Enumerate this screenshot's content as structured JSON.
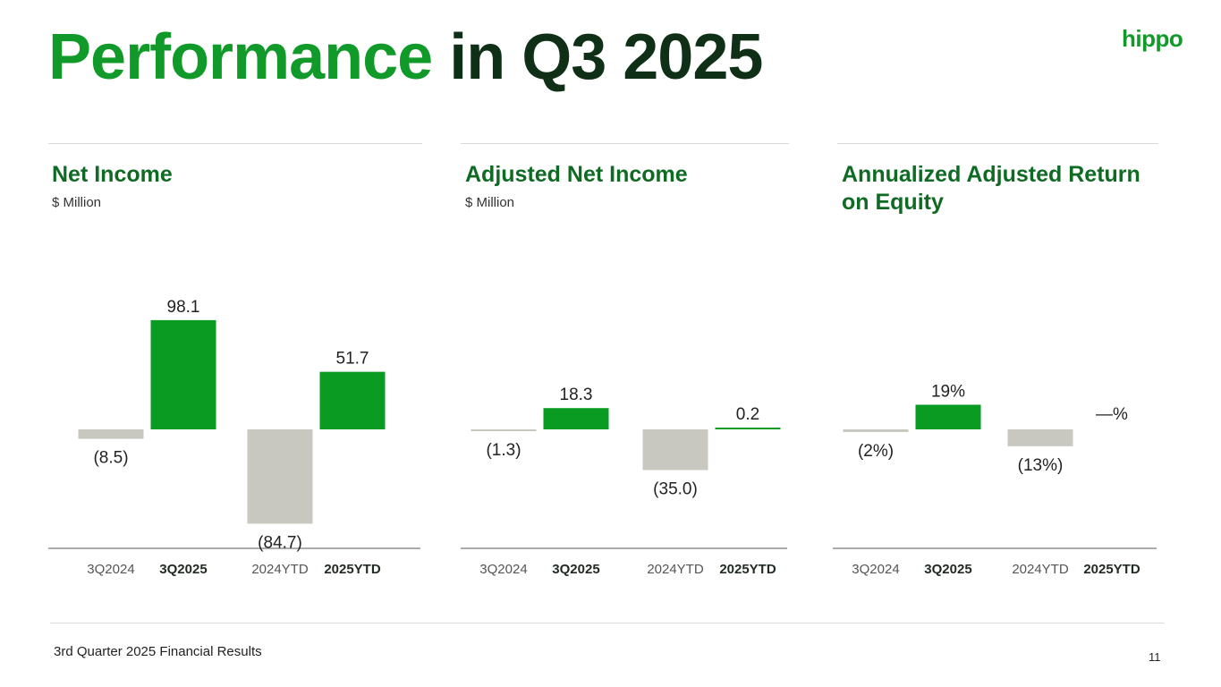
{
  "header": {
    "title_part1": "Performance",
    "title_part2": " in Q3 2025",
    "logo": "hippo"
  },
  "footer": {
    "text": "3rd Quarter 2025 Financial Results",
    "page": "11"
  },
  "colors": {
    "title_green": "#119a2a",
    "title_dark": "#0f3017",
    "panel_title": "#0f6b23",
    "bar_positive": "#0a9b22",
    "bar_negative": "#c8c7c0",
    "axis": "#7a7a7a"
  },
  "panels": [
    {
      "title": "Net Income",
      "title_line2": "",
      "subtitle": "$ Million"
    },
    {
      "title": "Adjusted Net Income",
      "title_line2": "",
      "subtitle": "$ Million"
    },
    {
      "title": "Annualized Adjusted Return",
      "title_line2": "on Equity",
      "subtitle": ""
    }
  ],
  "chart_data": [
    {
      "type": "bar",
      "title": "Net Income",
      "ylabel": "$ Million",
      "categories": [
        "3Q2024",
        "3Q2025",
        "2024YTD",
        "2025YTD"
      ],
      "emphasized": [
        false,
        true,
        false,
        true
      ],
      "values": [
        -8.5,
        98.1,
        -84.7,
        51.7
      ],
      "labels": [
        "(8.5)",
        "98.1",
        "(84.7)",
        "51.7"
      ]
    },
    {
      "type": "bar",
      "title": "Adjusted Net Income",
      "ylabel": "$ Million",
      "categories": [
        "3Q2024",
        "3Q2025",
        "2024YTD",
        "2025YTD"
      ],
      "emphasized": [
        false,
        true,
        false,
        true
      ],
      "values": [
        -1.3,
        18.3,
        -35.0,
        0.2
      ],
      "labels": [
        "(1.3)",
        "18.3",
        "(35.0)",
        "0.2"
      ]
    },
    {
      "type": "bar",
      "title": "Annualized Adjusted Return on Equity",
      "ylabel": "%",
      "categories": [
        "3Q2024",
        "3Q2025",
        "2024YTD",
        "2025YTD"
      ],
      "emphasized": [
        false,
        true,
        false,
        true
      ],
      "values": [
        -2,
        19,
        -13,
        0
      ],
      "labels": [
        "(2%)",
        "19%",
        "(13%)",
        "—%"
      ]
    }
  ]
}
